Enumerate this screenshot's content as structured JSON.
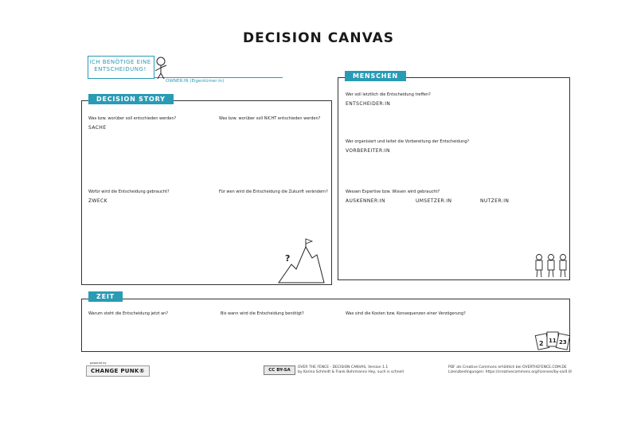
{
  "title": "DECISION CANVAS",
  "owner": {
    "text_line1": "ICH BENÖTIGE EINE",
    "text_line2": "ENTSCHEIDUNG!",
    "label": "OWNER:IN (Eigentümer:in)"
  },
  "story": {
    "tab": "DECISION STORY",
    "q1": "Was bzw. worüber soll entschieden werden?",
    "a1": "SACHE",
    "q2": "Was bzw. worüber soll NICHT entschieden werden?",
    "q3": "Wofür wird die Entscheidung gebraucht?",
    "a3": "ZWECK",
    "q4": "Für wen wird die Entscheidung die Zukunft verändern?"
  },
  "menschen": {
    "tab": "MENSCHEN",
    "q1": "Wer soll letztlich die Entscheidung treffen?",
    "a1": "ENTSCHEIDER:IN",
    "q2": "Wer organisiert und leitet die Vorbereitung der Entscheidung?",
    "a2": "VORBEREITER:IN",
    "q3": "Wessen Expertise bzw. Wissen wird gebraucht?",
    "a3a": "AUSKENNER:IN",
    "a3b": "UMSETZER:IN",
    "a3c": "NUTZER:IN"
  },
  "zeit": {
    "tab": "ZEIT",
    "q1": "Warum steht die Entscheidung jetzt an?",
    "q2": "Bis wann wird die Entscheidung benötigt?",
    "q3": "Was sind die Kosten bzw. Konsequenzen einer Verzögerung?"
  },
  "footer": {
    "powered": "powered by",
    "brand": "CHANGE PUNK®",
    "cc": "CC BY-SA",
    "line1": "OVER THE FENCE - DECISION CANVAS, Version 1.1",
    "line2": "by Karina Schmidt & Frank Bohrmanns    Hey, such is schnell",
    "right1": "PDF als Creative Commons erhältlich bei OVERTHEFENCE.COM.DE",
    "right2": "Lizenzbedingungen: https://creativecommons.org/licenses/by-sa/4.0/"
  },
  "colors": {
    "accent": "#2a9bb5",
    "line": "#333333"
  },
  "calendar_numbers": [
    "2",
    "11",
    "23"
  ]
}
